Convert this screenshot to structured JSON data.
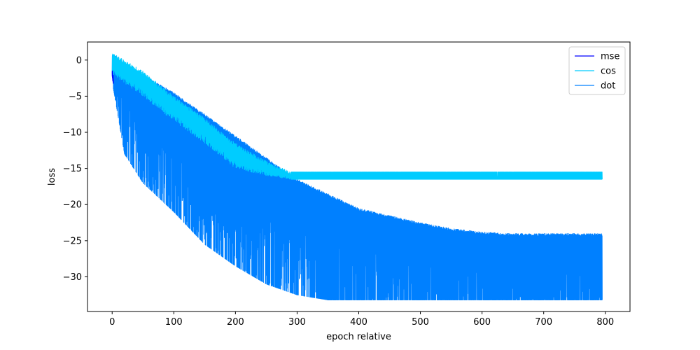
{
  "chart_data": {
    "type": "line",
    "title": "",
    "xlabel": "epoch relative",
    "ylabel": "loss",
    "xlim": [
      -40,
      840
    ],
    "ylim": [
      -34.8,
      2.5
    ],
    "xticks": [
      0,
      100,
      200,
      300,
      400,
      500,
      600,
      700,
      800
    ],
    "xtick_labels": [
      "0",
      "100",
      "200",
      "300",
      "400",
      "500",
      "600",
      "700",
      "800"
    ],
    "yticks": [
      0,
      -5,
      -10,
      -15,
      -20,
      -25,
      -30
    ],
    "ytick_labels": [
      "0",
      "−5",
      "−10",
      "−15",
      "−20",
      "−25",
      "−30"
    ],
    "grid": false,
    "legend_position": "top-right",
    "series": [
      {
        "name": "mse",
        "color": "#0000ff",
        "x": [
          0,
          0.5,
          1,
          1.5,
          2
        ],
        "upper": [
          -1.2,
          -1.5,
          -1.8,
          -2.0,
          -2.2
        ],
        "lower": [
          -2.2,
          -2.6,
          -3.0,
          -3.2,
          -3.5
        ]
      },
      {
        "name": "cos",
        "color": "#00ccff",
        "x": [
          0,
          50,
          100,
          150,
          200,
          250,
          290,
          300,
          400,
          500,
          600,
          700,
          795
        ],
        "upper": [
          1.0,
          -1.5,
          -5.0,
          -8.0,
          -11.5,
          -14.0,
          -15.5,
          -15.5,
          -15.5,
          -15.5,
          -15.5,
          -15.5,
          -15.5
        ],
        "lower": [
          -2.0,
          -5.0,
          -8.5,
          -11.5,
          -15.0,
          -16.0,
          -16.5,
          -16.5,
          -16.5,
          -16.5,
          -16.5,
          -16.5,
          -16.5
        ]
      },
      {
        "name": "dot",
        "color": "#0080ff",
        "x": [
          0,
          20,
          50,
          100,
          150,
          200,
          250,
          300,
          350,
          400,
          450,
          500,
          550,
          600,
          650,
          700,
          750,
          795
        ],
        "upper": [
          1.0,
          -0.5,
          -2.0,
          -4.5,
          -7.5,
          -10.5,
          -13.5,
          -16.5,
          -18.5,
          -20.5,
          -21.5,
          -22.5,
          -23.3,
          -23.8,
          -24.0,
          -24.0,
          -24.0,
          -24.0
        ],
        "lower": [
          -3.0,
          -13.0,
          -17.0,
          -21.0,
          -25.5,
          -28.5,
          -31.0,
          -32.5,
          -33.2,
          -33.2,
          -33.2,
          -33.2,
          -33.2,
          -33.2,
          -33.2,
          -33.2,
          -33.2,
          -33.2
        ]
      }
    ]
  }
}
